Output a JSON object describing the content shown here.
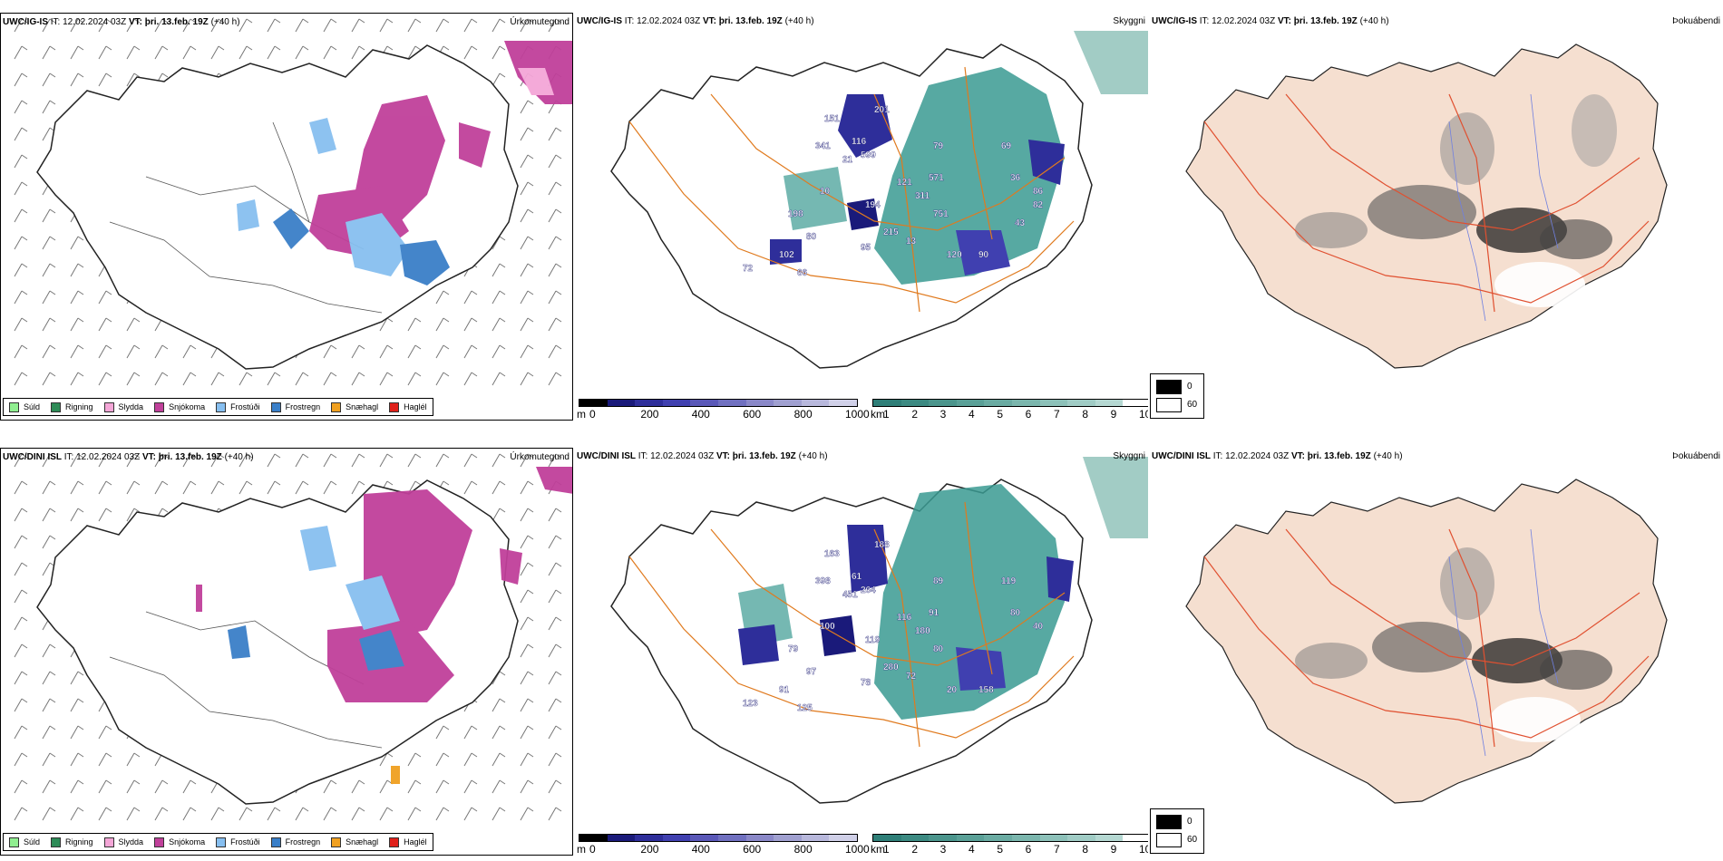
{
  "rows": [
    {
      "model": "UWC/IG-IS",
      "it_label": "IT:",
      "it_value": "12.02.2024 03Z",
      "vt_label": "VT:",
      "vt_value": "þri. 13.feb. 19Z",
      "lead": "(+40 h)",
      "panels": {
        "precip_type_title": "Úrkomutegund",
        "ceiling_title": "Skyggni",
        "fog_title": "Þokuábendi"
      },
      "ceiling_labels": [
        "151",
        "201",
        "79",
        "599",
        "341",
        "116",
        "21",
        "10",
        "194",
        "121",
        "571",
        "311",
        "215",
        "751",
        "198",
        "80",
        "95",
        "13",
        "120",
        "90",
        "102",
        "66",
        "72",
        "69",
        "36",
        "86",
        "82",
        "43"
      ]
    },
    {
      "model": "UWC/DINI ISL",
      "it_label": "IT:",
      "it_value": "12.02.2024 03Z",
      "vt_label": "VT:",
      "vt_value": "þri. 13.feb. 19Z",
      "lead": "(+40 h)",
      "panels": {
        "precip_type_title": "Úrkomutegund",
        "ceiling_title": "Skyggni",
        "fog_title": "Þokuábendi"
      },
      "ceiling_labels": [
        "163",
        "188",
        "89",
        "264",
        "398",
        "61",
        "451",
        "100",
        "119",
        "116",
        "91",
        "180",
        "280",
        "80",
        "79",
        "97",
        "78",
        "72",
        "20",
        "158",
        "91",
        "125",
        "123",
        "119",
        "80",
        "40"
      ]
    }
  ],
  "precip_legend": [
    {
      "label": "Súld",
      "color": "#90ee90"
    },
    {
      "label": "Rigning",
      "color": "#2e8b57"
    },
    {
      "label": "Slydda",
      "color": "#f4a6d7"
    },
    {
      "label": "Snjókoma",
      "color": "#c0409a"
    },
    {
      "label": "Frostúði",
      "color": "#87bff0"
    },
    {
      "label": "Frostregn",
      "color": "#3a7fc8"
    },
    {
      "label": "Snæhagl",
      "color": "#f0a020"
    },
    {
      "label": "Haglél",
      "color": "#e0201a"
    }
  ],
  "ceiling_scale": {
    "unit": "m",
    "ticks": [
      "0",
      "200",
      "400",
      "600",
      "800",
      "1000"
    ],
    "colors": [
      "#000000",
      "#1a1a7a",
      "#2e2e9a",
      "#4040b0",
      "#5a58b8",
      "#7070c0",
      "#8a88c8",
      "#a0a0d0",
      "#b8b8dc",
      "#d0d0e8"
    ]
  },
  "visibility_scale": {
    "unit": "km",
    "ticks": [
      "1",
      "2",
      "3",
      "4",
      "5",
      "6",
      "7",
      "8",
      "9",
      "10"
    ],
    "colors": [
      "#2f7f78",
      "#3c8a82",
      "#4b958c",
      "#5aa097",
      "#6aaba2",
      "#7bb6ad",
      "#8dc1b9",
      "#a0ccc5",
      "#b5d8d2",
      "#ffffff"
    ]
  },
  "fog_legend": {
    "labels": [
      "0",
      "60"
    ],
    "colors": [
      "#000000",
      "#ffffff"
    ]
  },
  "colors": {
    "coast": "#222222",
    "roads": "#e07a1e",
    "fog_land": "#f5dfd0",
    "fog_roads": "#e05030",
    "rivers": "#7080e0",
    "teal": "#3a9a92"
  }
}
